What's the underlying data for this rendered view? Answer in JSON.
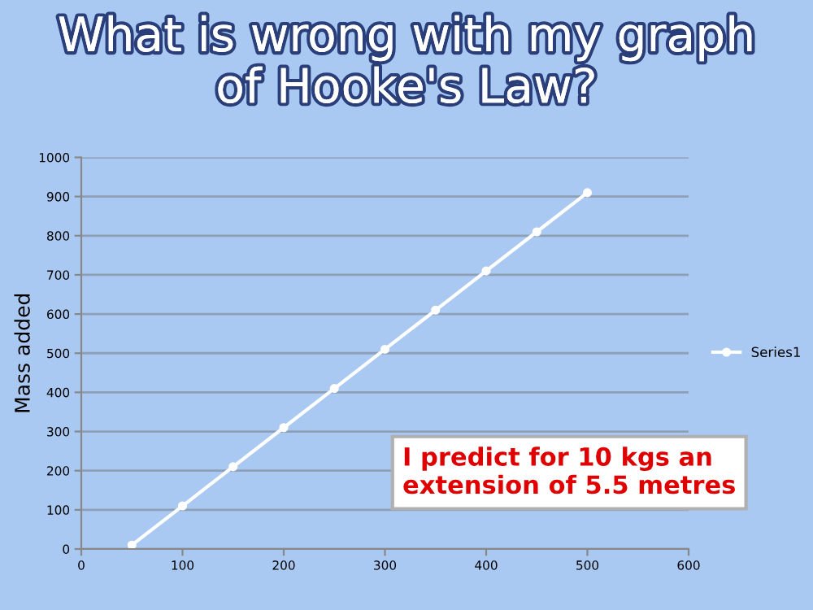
{
  "chart_data": {
    "type": "line",
    "title": "What is wrong with my graph\nof Hooke's Law?",
    "ylabel": "Mass added",
    "x": [
      50,
      100,
      150,
      200,
      250,
      300,
      350,
      400,
      450,
      500
    ],
    "series": [
      {
        "name": "Series1",
        "color": "#ffffff",
        "values": [
          10,
          110,
          210,
          310,
          410,
          510,
          610,
          710,
          810,
          910
        ]
      }
    ],
    "xlim": [
      0,
      600
    ],
    "xticks": [
      0,
      100,
      200,
      300,
      400,
      500,
      600
    ],
    "ylim": [
      0,
      1000
    ],
    "yticks": [
      0,
      100,
      200,
      300,
      400,
      500,
      600,
      700,
      800,
      900,
      1000
    ],
    "grid": "y",
    "legend": "right",
    "marker": "circle",
    "line_style": "solid",
    "annotations": [
      "I predict for 10 kgs an\nextension of 5.5 metres"
    ]
  }
}
